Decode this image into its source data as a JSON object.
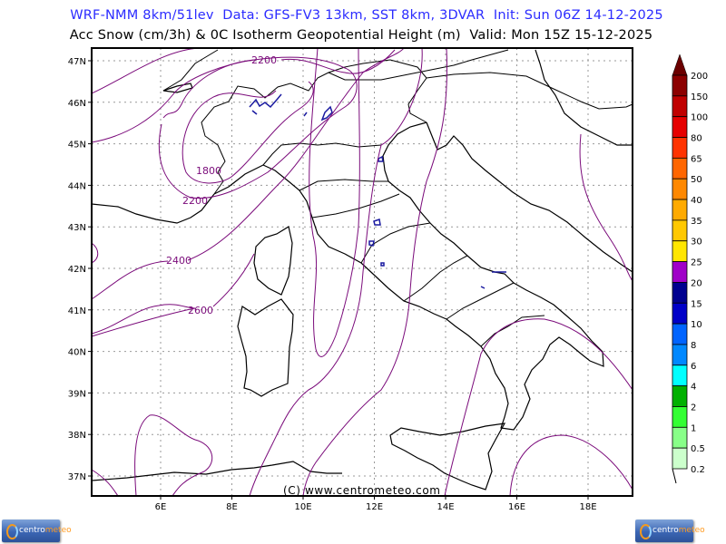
{
  "header": {
    "line1": "WRF-NMM 8km/51lev  Data: GFS-FV3 13km, SST 8km, 3DVAR  Init: Sun 06Z 14-12-2025",
    "line2": "Acc Snow (cm/3h) & 0C Isotherm Geopotential Height (m)  Valid: Mon 15Z 15-12-2025"
  },
  "map": {
    "lat_labels": [
      "47N",
      "46N",
      "45N",
      "44N",
      "43N",
      "42N",
      "41N",
      "40N",
      "39N",
      "38N",
      "37N"
    ],
    "lon_labels": [
      "6E",
      "8E",
      "10E",
      "12E",
      "14E",
      "16E",
      "18E"
    ],
    "contour_labels": [
      "2200",
      "1800",
      "2200",
      "2400",
      "2600"
    ],
    "contour_color": "#7a0a7a",
    "snow_outline_color": "#1a1aa0",
    "copyright": "(C) www.centrometeo.com"
  },
  "colorbar": {
    "labels": [
      "200",
      "150",
      "100",
      "80",
      "65",
      "50",
      "40",
      "35",
      "30",
      "25",
      "20",
      "15",
      "10",
      "8",
      "6",
      "4",
      "2",
      "1",
      "0.5",
      "0.2"
    ],
    "colors": [
      "#8c0000",
      "#c00000",
      "#e60000",
      "#ff3300",
      "#ff6600",
      "#ff8800",
      "#ffaa00",
      "#ffc800",
      "#ffe600",
      "#a000c8",
      "#000090",
      "#0000c8",
      "#0064ff",
      "#0088ff",
      "#00ffff",
      "#00b000",
      "#33ff33",
      "#88ff88",
      "#ccffcc"
    ],
    "over_color": "#6b0000"
  },
  "logos": {
    "left": {
      "part1": "centro",
      "part2": "meteo"
    },
    "right": {
      "part1": "centro",
      "part2": "meteo"
    }
  }
}
